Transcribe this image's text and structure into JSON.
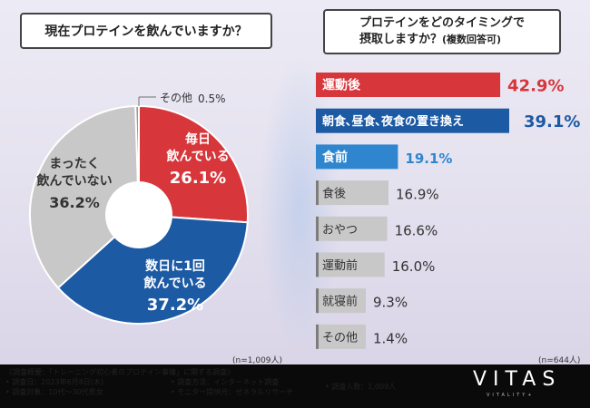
{
  "colors": {
    "red": "#d7363b",
    "blue": "#1d5aa4",
    "light_blue": "#2f86cf",
    "gray": "#c8c8c8",
    "gray_text": "#333333"
  },
  "left_title": "現在プロテインを飲んでいますか？",
  "right_title_line1": "プロテインをどのタイミングで",
  "right_title_line2": "摂取しますか？",
  "right_title_sub": "(複数回答可)",
  "left_n": "(n=1,009人)",
  "right_n": "(n=644人)",
  "chart_data": [
    {
      "type": "pie",
      "title": "現在プロテインを飲んでいますか？",
      "slices": [
        {
          "label_lines": [
            "毎日",
            "飲んでいる"
          ],
          "value": 26.1,
          "value_label": "26.1%",
          "color": "#d7363b"
        },
        {
          "label_lines": [
            "数日に1回",
            "飲んでいる"
          ],
          "value": 37.2,
          "value_label": "37.2%",
          "color": "#1d5aa4"
        },
        {
          "label_lines": [
            "まったく",
            "飲んでいない"
          ],
          "value": 36.2,
          "value_label": "36.2%",
          "color": "#c8c8c8"
        },
        {
          "label_lines": [
            "その他"
          ],
          "value": 0.5,
          "value_label": "0.5%",
          "color": "#9a9a9a"
        }
      ]
    },
    {
      "type": "bar",
      "orientation": "horizontal",
      "title": "プロテインをどのタイミングで摂取しますか？(複数回答可)",
      "categories": [
        "運動後",
        "朝食､昼食､夜食の置き換え",
        "食前",
        "食後",
        "おやつ",
        "運動前",
        "就寝前",
        "その他"
      ],
      "values": [
        42.9,
        39.1,
        19.1,
        16.9,
        16.6,
        16.0,
        9.3,
        1.4
      ],
      "value_labels": [
        "42.9%",
        "39.1%",
        "19.1%",
        "16.9%",
        "16.6%",
        "16.0%",
        "9.3%",
        "1.4%"
      ],
      "colors": [
        "#d7363b",
        "#1d5aa4",
        "#2f86cf",
        "#c8c8c8",
        "#c8c8c8",
        "#c8c8c8",
        "#c8c8c8",
        "#c8c8c8"
      ],
      "xlim": [
        0,
        45
      ]
    }
  ],
  "footer": {
    "overview": "《調査概要：「トレーニング初心者のプロテイン事情」に関する調査》",
    "date": "• 調査日：2023年6月8日(木)",
    "target": "• 調査対象：10代〜30代男女",
    "method": "• 調査方法：インターネット調査",
    "provider": "• モニター提供元：ゼネラルリサーチ",
    "count": "• 調査人数：1,009人",
    "logo": "VITAS",
    "logo_sub": "VITALITY+"
  }
}
